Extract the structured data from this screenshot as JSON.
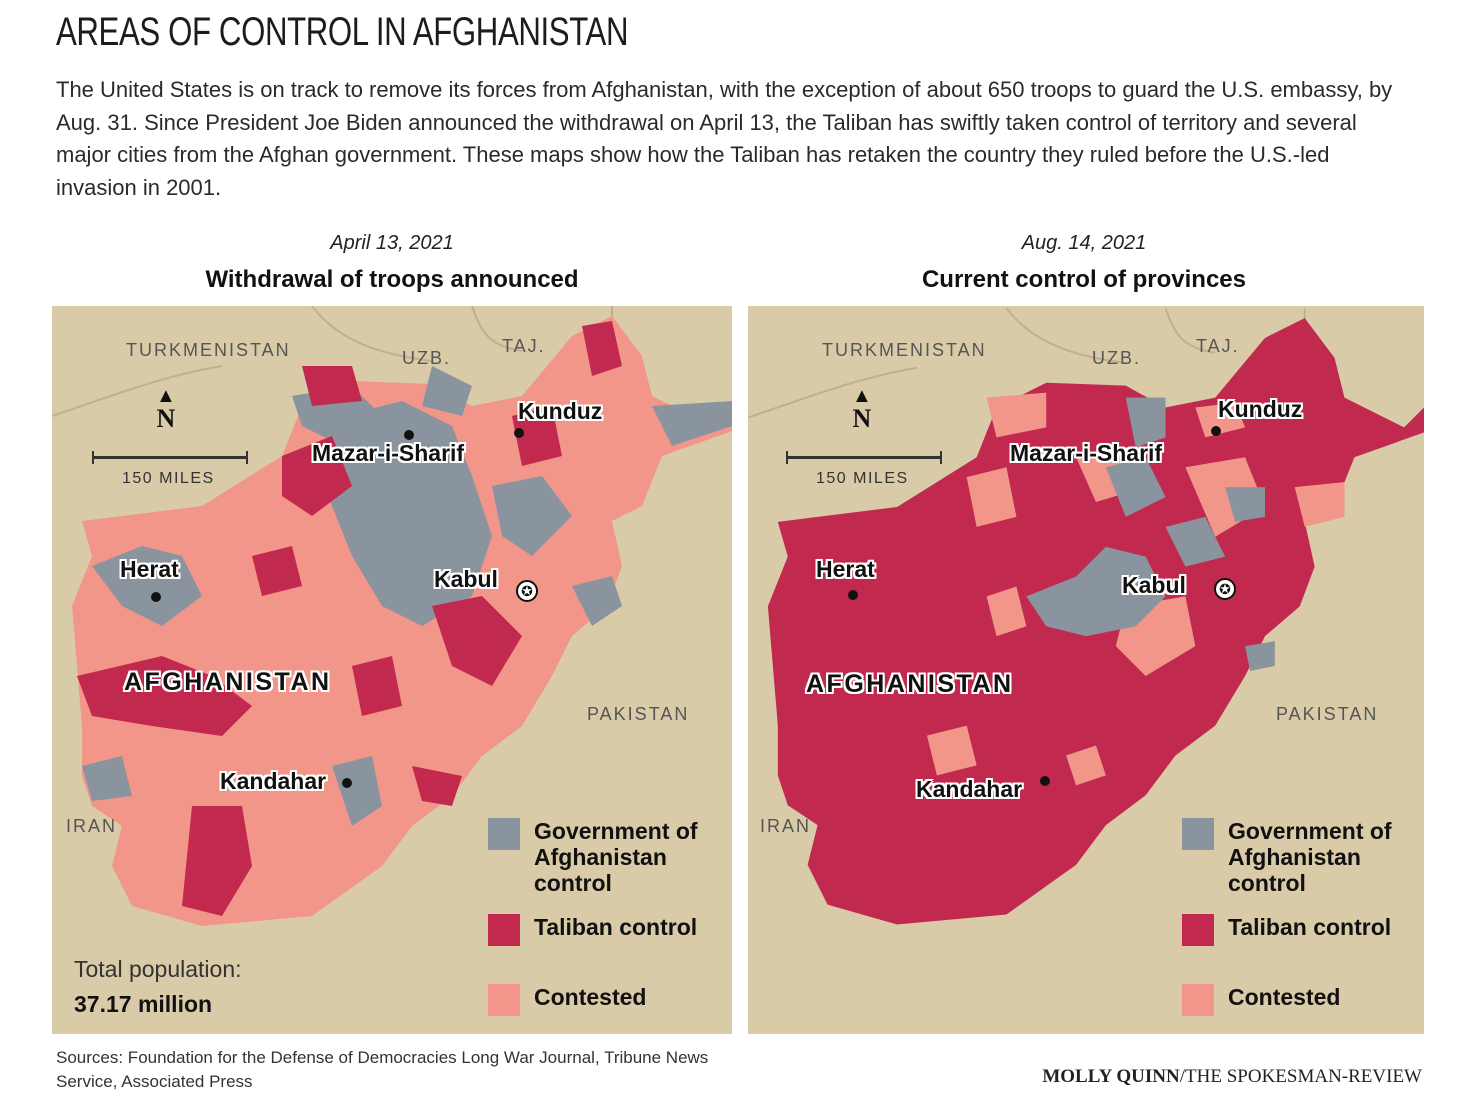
{
  "title": "AREAS OF CONTROL IN AFGHANISTAN",
  "intro": "The United States is on track to remove its forces from Afghanistan, with the exception of about 650 troops to guard the U.S. embassy, by Aug. 31. Since President Joe Biden announced the withdrawal on April 13, the Taliban has swiftly taken control of territory and several major cities from the Afghan government. These maps show how the Taliban has retaken the country they ruled before the U.S.-led invasion in 2001.",
  "colors": {
    "government": "#8a949e",
    "taliban": "#c1294f",
    "contested": "#f2968a",
    "background": "#d9cba8"
  },
  "maps": [
    {
      "date": "April 13, 2021",
      "subtitle": "Withdrawal of troops announced",
      "country_labels": {
        "turkmenistan": "TURKMENISTAN",
        "uzbekistan": "UZB.",
        "tajikistan": "TAJ.",
        "pakistan": "PAKISTAN",
        "iran": "IRAN",
        "afghanistan": "AFGHANISTAN"
      },
      "cities": {
        "mazar": "Mazar-i-Sharif",
        "kunduz": "Kunduz",
        "herat": "Herat",
        "kabul": "Kabul",
        "kandahar": "Kandahar"
      },
      "compass": "N",
      "scale": "150 MILES",
      "legend": {
        "government": "Government of Afghanistan control",
        "taliban": "Taliban control",
        "contested": "Contested"
      },
      "population_label": "Total population:",
      "population_value": "37.17 million"
    },
    {
      "date": "Aug. 14, 2021",
      "subtitle": "Current control of provinces",
      "country_labels": {
        "turkmenistan": "TURKMENISTAN",
        "uzbekistan": "UZB.",
        "tajikistan": "TAJ.",
        "pakistan": "PAKISTAN",
        "iran": "IRAN",
        "afghanistan": "AFGHANISTAN"
      },
      "cities": {
        "mazar": "Mazar-i-Sharif",
        "kunduz": "Kunduz",
        "herat": "Herat",
        "kabul": "Kabul",
        "kandahar": "Kandahar"
      },
      "compass": "N",
      "scale": "150 MILES",
      "legend": {
        "government": "Government of Afghanistan control",
        "taliban": "Taliban control",
        "contested": "Contested"
      }
    }
  ],
  "sources": "Sources: Foundation for the Defense of Democracies Long War Journal, Tribune News Service, Associated Press",
  "credit": {
    "author": "MOLLY QUINN",
    "outlet": "/THE SPOKESMAN-REVIEW"
  }
}
